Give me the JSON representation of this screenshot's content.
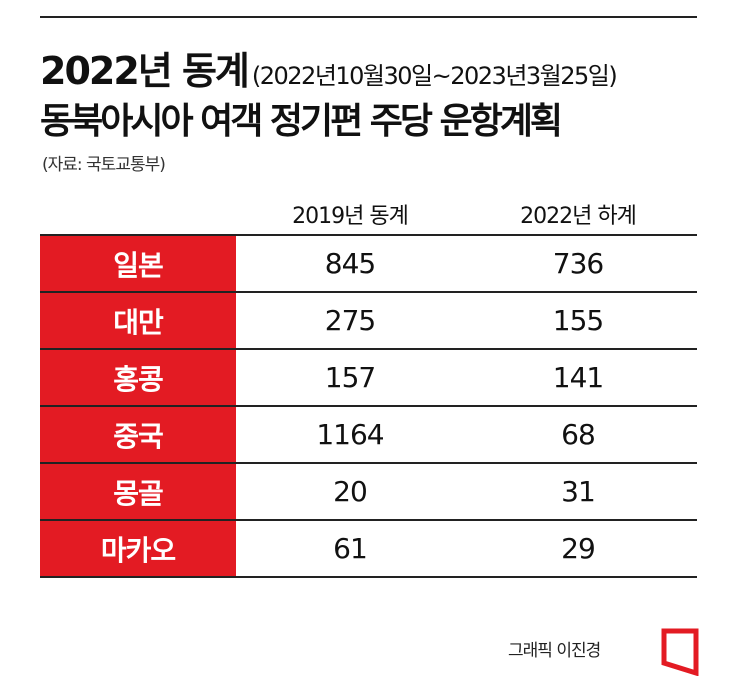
{
  "header": {
    "title_main": "2022년 동계",
    "title_period": "(2022년10월30일~2023년3월25일)",
    "title_line2": "동북아시아 여객 정기편 주당 운항계획",
    "source": "(자료: 국토교통부)"
  },
  "chart_data": {
    "type": "table",
    "columns": [
      "2019년 동계",
      "2022년 하계"
    ],
    "rows": [
      {
        "label": "일본",
        "values": [
          "845",
          "736"
        ]
      },
      {
        "label": "대만",
        "values": [
          "275",
          "155"
        ]
      },
      {
        "label": "홍콩",
        "values": [
          "157",
          "141"
        ]
      },
      {
        "label": "중국",
        "values": [
          "1164",
          "68"
        ]
      },
      {
        "label": "몽골",
        "values": [
          "20",
          "31"
        ]
      },
      {
        "label": "마카오",
        "values": [
          "61",
          "29"
        ]
      }
    ]
  },
  "footer": {
    "credit": "그래픽 이진경",
    "logo_icon": "red-document-logo-icon"
  },
  "colors": {
    "accent": "#e31b23",
    "rule": "#222222"
  }
}
